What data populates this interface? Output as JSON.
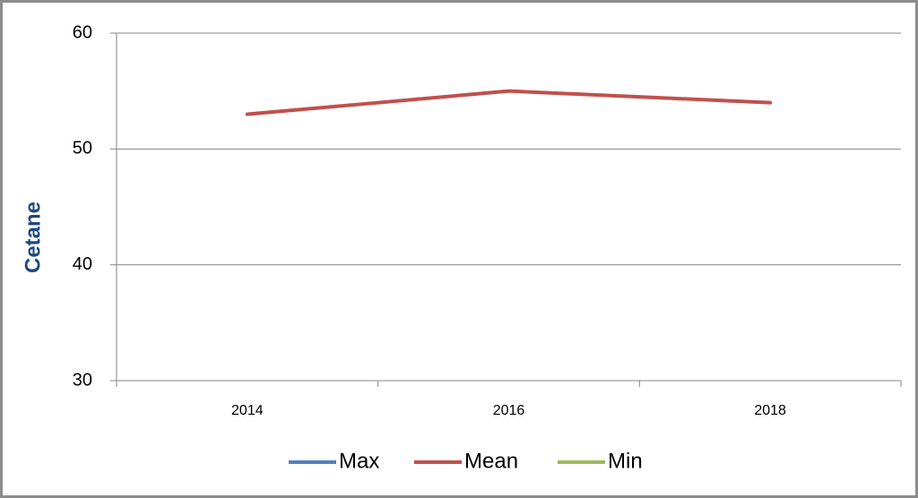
{
  "chart_data": {
    "type": "line",
    "categories": [
      "2014",
      "2016",
      "2018"
    ],
    "series": [
      {
        "name": "Max",
        "color": "#4f81bd",
        "values": [
          null,
          null,
          null
        ]
      },
      {
        "name": "Mean",
        "color": "#c0504d",
        "values": [
          53,
          55,
          54
        ]
      },
      {
        "name": "Min",
        "color": "#9bbb59",
        "values": [
          null,
          null,
          null
        ]
      }
    ],
    "ylabel": "Cetane",
    "ylim": [
      30,
      60
    ],
    "yticks": [
      30,
      40,
      50,
      60
    ],
    "grid": true,
    "legend": "bottom"
  }
}
